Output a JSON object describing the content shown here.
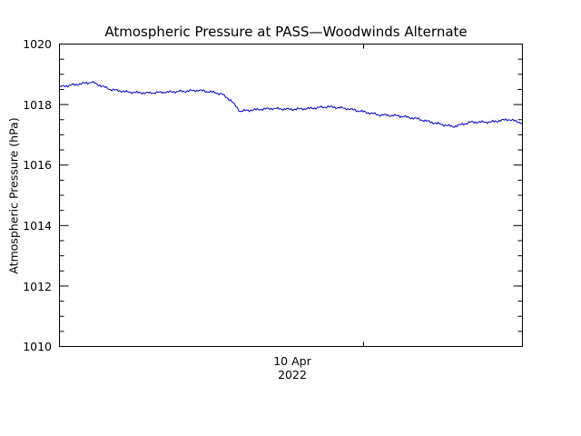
{
  "chart_data": {
    "type": "line",
    "title": "Atmospheric Pressure at PASS—Woodwinds Alternate",
    "xlabel": "",
    "ylabel": "Atmospheric Pressure (hPa)",
    "ylim": [
      1010,
      1020
    ],
    "yticks": [
      "1010",
      "1012",
      "1014",
      "1016",
      "1018",
      "1020"
    ],
    "xticks": [
      {
        "label": "10 Apr",
        "sublabel": "2022"
      }
    ],
    "grid": false,
    "legend": null,
    "series": [
      {
        "name": "Atmospheric Pressure",
        "color": "#0000cc",
        "x_fraction": [
          0.0,
          0.03,
          0.07,
          0.11,
          0.15,
          0.19,
          0.23,
          0.27,
          0.3,
          0.33,
          0.35,
          0.37,
          0.39,
          0.43,
          0.46,
          0.5,
          0.54,
          0.58,
          0.62,
          0.65,
          0.69,
          0.73,
          0.77,
          0.81,
          0.85,
          0.89,
          0.93,
          0.97,
          1.0
        ],
        "values": [
          1018.59,
          1018.65,
          1018.74,
          1018.5,
          1018.41,
          1018.38,
          1018.41,
          1018.44,
          1018.47,
          1018.41,
          1018.35,
          1018.14,
          1017.78,
          1017.84,
          1017.87,
          1017.84,
          1017.87,
          1017.93,
          1017.87,
          1017.78,
          1017.66,
          1017.63,
          1017.54,
          1017.39,
          1017.27,
          1017.42,
          1017.42,
          1017.51,
          1017.39
        ]
      }
    ]
  },
  "axis": {
    "ytick_labels": [
      "1020",
      "1018",
      "1016",
      "1014",
      "1012",
      "1010"
    ],
    "x_label_line1": "10 Apr",
    "x_label_line2": "2022"
  }
}
